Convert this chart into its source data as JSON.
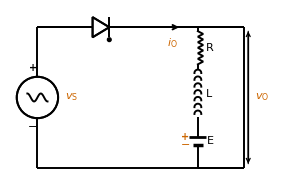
{
  "bg_color": "#ffffff",
  "line_color": "#000000",
  "orange_color": "#cc6600",
  "fig_width": 2.87,
  "fig_height": 1.87,
  "dpi": 100,
  "xlim": [
    0,
    10
  ],
  "ylim": [
    0,
    7
  ]
}
